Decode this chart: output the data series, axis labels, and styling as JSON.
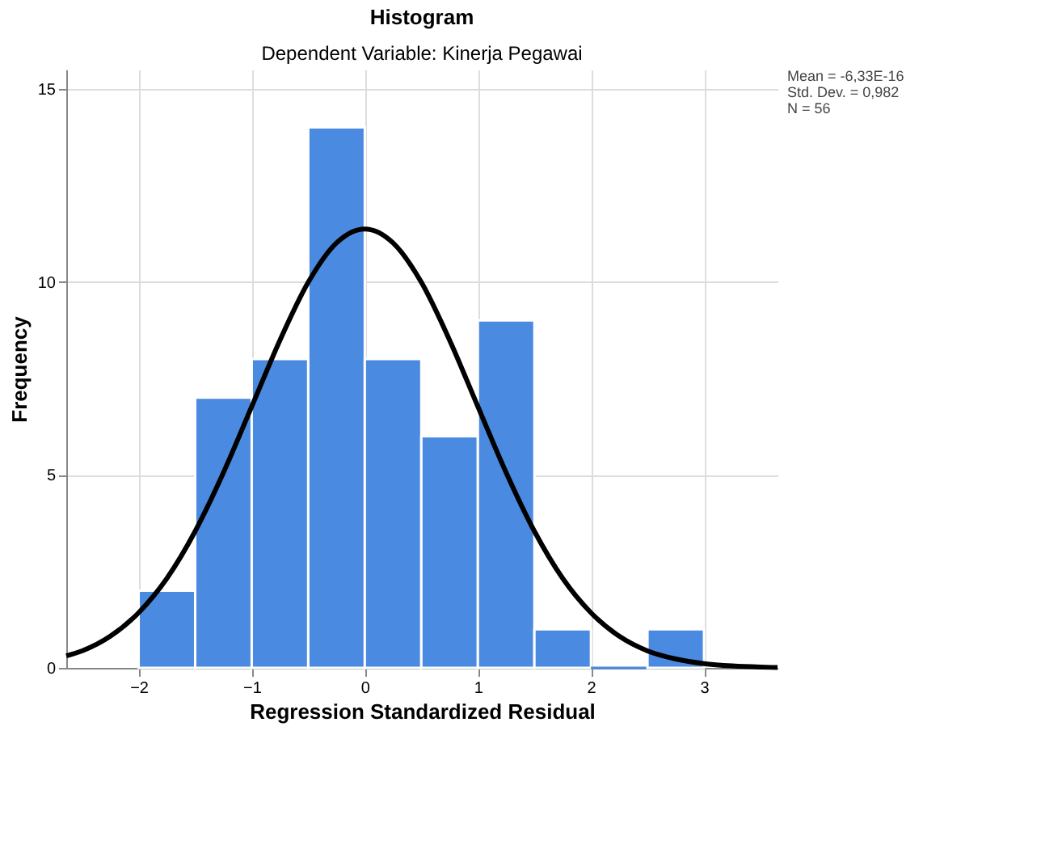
{
  "chart_data": {
    "type": "histogram",
    "title": "Histogram",
    "subtitle": "Dependent Variable: Kinerja Pegawai",
    "xlabel": "Regression Standardized Residual",
    "ylabel": "Frequency",
    "bins": [
      -2,
      -1.5,
      -1,
      -0.5,
      0,
      0.5,
      1,
      1.5,
      2,
      2.5,
      3
    ],
    "values": [
      2,
      7,
      8,
      14,
      8,
      6,
      9,
      1,
      0,
      1
    ],
    "color": "#4a8ae0",
    "series": [
      {
        "type": "line",
        "color": "#000000",
        "x": [
          -2.64,
          -2.5,
          -2.25,
          -2,
          -1.75,
          -1.5,
          -1.25,
          -1,
          -0.75,
          -0.5,
          -0.25,
          0,
          0.25,
          0.5,
          0.75,
          1,
          1.25,
          1.5,
          1.75,
          2,
          2.25,
          2.5,
          2.75,
          3,
          3.25,
          3.5,
          3.65
        ],
        "values": [
          0.31,
          0.44,
          0.82,
          1.43,
          2.32,
          3.54,
          5.06,
          6.77,
          8.49,
          9.99,
          11.01,
          11.37,
          11.01,
          9.99,
          8.49,
          6.77,
          5.06,
          3.54,
          2.32,
          1.43,
          0.82,
          0.44,
          0.23,
          0.11,
          0.05,
          0.02,
          0.01
        ]
      }
    ],
    "xlim": [
      -2.64,
      3.65
    ],
    "ylim": [
      0,
      15.5
    ],
    "xticks": [
      -2,
      -1,
      0,
      1,
      2,
      3
    ],
    "yticks": [
      0,
      5,
      10,
      15
    ],
    "grid": true,
    "annotations": [
      "Mean = -6,33E-16",
      "Std. Dev. = 0,982",
      "N = 56"
    ]
  }
}
